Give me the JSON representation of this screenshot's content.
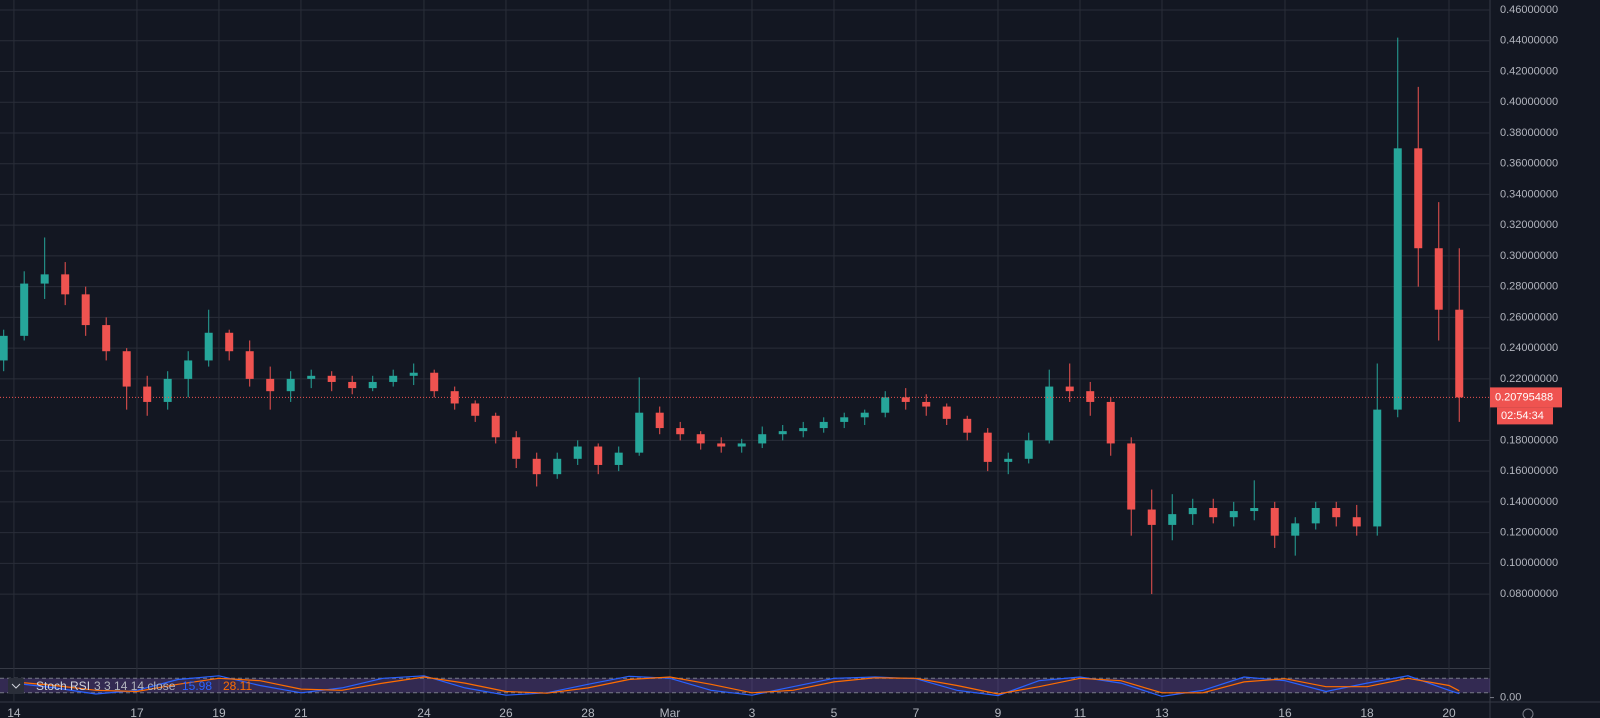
{
  "chart_data": [
    {
      "type": "candlestick",
      "x": [
        -0.25,
        0.25,
        0.75,
        1.25,
        1.75,
        2.25,
        2.75,
        3.25,
        3.75,
        4.25,
        4.75,
        5.25,
        5.75,
        6.25,
        6.75,
        7.25,
        7.75,
        8.25,
        8.75,
        9.25,
        9.75,
        10.25,
        10.75,
        11.25,
        11.75,
        12.25,
        12.75,
        13.25,
        13.75,
        14.25,
        14.75,
        15.25,
        15.75,
        16.25,
        16.75,
        17.25,
        17.75,
        18.25,
        18.75,
        19.25,
        19.75,
        20.25,
        20.75,
        21.25,
        21.75,
        22.25,
        22.75,
        23.25,
        23.75,
        24.25,
        24.75,
        25.25,
        25.75,
        26.25,
        26.75,
        27.25,
        27.75,
        28.25,
        28.75,
        29.25,
        29.75,
        30.25,
        30.75,
        31.25,
        31.75,
        32.25,
        32.75,
        33.25,
        33.75,
        34.25,
        34.75,
        35.25
      ],
      "open": [
        0.232,
        0.248,
        0.282,
        0.288,
        0.275,
        0.255,
        0.238,
        0.215,
        0.205,
        0.22,
        0.232,
        0.25,
        0.238,
        0.22,
        0.212,
        0.22,
        0.222,
        0.218,
        0.214,
        0.218,
        0.222,
        0.224,
        0.212,
        0.204,
        0.196,
        0.182,
        0.168,
        0.158,
        0.168,
        0.176,
        0.164,
        0.172,
        0.198,
        0.188,
        0.184,
        0.178,
        0.176,
        0.178,
        0.184,
        0.186,
        0.188,
        0.192,
        0.195,
        0.198,
        0.208,
        0.205,
        0.202,
        0.194,
        0.185,
        0.166,
        0.168,
        0.18,
        0.215,
        0.212,
        0.205,
        0.178,
        0.135,
        0.125,
        0.132,
        0.136,
        0.13,
        0.134,
        0.136,
        0.118,
        0.126,
        0.136,
        0.13,
        0.124,
        0.2,
        0.37,
        0.305,
        0.265
      ],
      "high": [
        0.252,
        0.29,
        0.312,
        0.296,
        0.28,
        0.26,
        0.24,
        0.222,
        0.225,
        0.238,
        0.265,
        0.252,
        0.245,
        0.228,
        0.225,
        0.226,
        0.225,
        0.222,
        0.222,
        0.226,
        0.23,
        0.226,
        0.215,
        0.206,
        0.198,
        0.186,
        0.172,
        0.172,
        0.18,
        0.178,
        0.176,
        0.221,
        0.202,
        0.192,
        0.186,
        0.182,
        0.181,
        0.189,
        0.19,
        0.192,
        0.195,
        0.198,
        0.2,
        0.212,
        0.214,
        0.21,
        0.204,
        0.196,
        0.188,
        0.172,
        0.185,
        0.226,
        0.23,
        0.218,
        0.208,
        0.182,
        0.148,
        0.145,
        0.142,
        0.142,
        0.14,
        0.154,
        0.14,
        0.13,
        0.14,
        0.14,
        0.138,
        0.23,
        0.442,
        0.41,
        0.335,
        0.305
      ],
      "low": [
        0.225,
        0.245,
        0.272,
        0.268,
        0.248,
        0.232,
        0.2,
        0.196,
        0.2,
        0.208,
        0.228,
        0.232,
        0.215,
        0.2,
        0.205,
        0.214,
        0.212,
        0.21,
        0.212,
        0.215,
        0.216,
        0.208,
        0.2,
        0.192,
        0.178,
        0.162,
        0.15,
        0.155,
        0.164,
        0.158,
        0.16,
        0.17,
        0.184,
        0.18,
        0.174,
        0.172,
        0.172,
        0.175,
        0.18,
        0.182,
        0.185,
        0.188,
        0.19,
        0.195,
        0.2,
        0.196,
        0.19,
        0.18,
        0.16,
        0.158,
        0.165,
        0.178,
        0.205,
        0.196,
        0.17,
        0.118,
        0.08,
        0.115,
        0.125,
        0.126,
        0.124,
        0.128,
        0.11,
        0.105,
        0.122,
        0.124,
        0.118,
        0.118,
        0.195,
        0.28,
        0.245,
        0.192
      ],
      "close": [
        0.248,
        0.282,
        0.288,
        0.275,
        0.255,
        0.238,
        0.215,
        0.205,
        0.22,
        0.232,
        0.25,
        0.238,
        0.22,
        0.212,
        0.22,
        0.222,
        0.218,
        0.214,
        0.218,
        0.222,
        0.224,
        0.212,
        0.204,
        0.196,
        0.182,
        0.168,
        0.158,
        0.168,
        0.176,
        0.164,
        0.172,
        0.198,
        0.188,
        0.184,
        0.178,
        0.176,
        0.178,
        0.184,
        0.186,
        0.188,
        0.192,
        0.195,
        0.198,
        0.208,
        0.205,
        0.202,
        0.194,
        0.185,
        0.166,
        0.168,
        0.18,
        0.215,
        0.212,
        0.205,
        0.178,
        0.135,
        0.125,
        0.132,
        0.136,
        0.13,
        0.134,
        0.136,
        0.118,
        0.126,
        0.136,
        0.13,
        0.124,
        0.2,
        0.37,
        0.305,
        0.265,
        0.20795488
      ],
      "up_color": "#26a69a",
      "down_color": "#ef5350",
      "xlim": [
        -0.34,
        36.0
      ],
      "ylim": [
        0.0319,
        0.4665
      ],
      "xticks": [
        {
          "value": 0,
          "label": "14"
        },
        {
          "value": 3,
          "label": "17"
        },
        {
          "value": 5,
          "label": "19"
        },
        {
          "value": 7,
          "label": "21"
        },
        {
          "value": 10,
          "label": "24"
        },
        {
          "value": 12,
          "label": "26"
        },
        {
          "value": 14,
          "label": "28"
        },
        {
          "value": 16,
          "label": "Mar"
        },
        {
          "value": 18,
          "label": "3"
        },
        {
          "value": 20,
          "label": "5"
        },
        {
          "value": 22,
          "label": "7"
        },
        {
          "value": 24,
          "label": "9"
        },
        {
          "value": 26,
          "label": "11"
        },
        {
          "value": 28,
          "label": "13"
        },
        {
          "value": 31,
          "label": "16"
        },
        {
          "value": 33,
          "label": "18"
        },
        {
          "value": 35,
          "label": "20"
        }
      ],
      "yticks": [
        {
          "value": 0.08,
          "label": "0.08000000"
        },
        {
          "value": 0.1,
          "label": "0.10000000"
        },
        {
          "value": 0.12,
          "label": "0.12000000"
        },
        {
          "value": 0.14,
          "label": "0.14000000"
        },
        {
          "value": 0.16,
          "label": "0.16000000"
        },
        {
          "value": 0.18,
          "label": "0.18000000"
        },
        {
          "value": 0.22,
          "label": "0.22000000"
        },
        {
          "value": 0.24,
          "label": "0.24000000"
        },
        {
          "value": 0.26,
          "label": "0.26000000"
        },
        {
          "value": 0.28,
          "label": "0.28000000"
        },
        {
          "value": 0.3,
          "label": "0.30000000"
        },
        {
          "value": 0.32,
          "label": "0.32000000"
        },
        {
          "value": 0.34,
          "label": "0.34000000"
        },
        {
          "value": 0.36,
          "label": "0.36000000"
        },
        {
          "value": 0.38,
          "label": "0.38000000"
        },
        {
          "value": 0.4,
          "label": "0.40000000"
        },
        {
          "value": 0.42,
          "label": "0.42000000"
        },
        {
          "value": 0.44,
          "label": "0.44000000"
        },
        {
          "value": 0.46,
          "label": "0.46000000"
        }
      ],
      "grid": true,
      "last_price": 0.20795488,
      "countdown": "02:54:34"
    },
    {
      "type": "line",
      "title": "Stoch RSI",
      "subtitle": "3 3 14 14 close",
      "x": [
        0,
        1,
        2,
        3,
        4,
        5,
        6,
        7,
        8,
        9,
        10,
        11,
        12,
        13,
        14,
        15,
        16,
        17,
        18,
        19,
        20,
        21,
        22,
        23,
        24,
        25,
        26,
        27,
        28,
        29,
        30,
        31,
        32,
        33,
        34,
        35,
        35.25
      ],
      "series": [
        {
          "color": "#2962ff",
          "values": [
            60,
            40,
            15,
            30,
            75,
            90,
            50,
            20,
            40,
            80,
            90,
            40,
            10,
            20,
            55,
            88,
            80,
            30,
            10,
            45,
            80,
            85,
            78,
            30,
            8,
            70,
            85,
            60,
            5,
            30,
            85,
            70,
            25,
            60,
            90,
            30,
            15.98
          ]
        },
        {
          "color": "#ff6d00",
          "values": [
            65,
            50,
            30,
            25,
            55,
            80,
            70,
            35,
            30,
            60,
            85,
            60,
            25,
            18,
            40,
            75,
            85,
            55,
            20,
            30,
            65,
            82,
            80,
            50,
            15,
            45,
            80,
            70,
            20,
            20,
            65,
            78,
            45,
            45,
            80,
            50,
            28.11
          ]
        }
      ],
      "xlim": [
        -0.34,
        36.0
      ],
      "ylim": [
        -10,
        110
      ],
      "yticks": [
        {
          "value": 0,
          "label": "0.00"
        }
      ],
      "band": [
        20,
        80
      ],
      "band_color": "#7e57c2"
    }
  ]
}
